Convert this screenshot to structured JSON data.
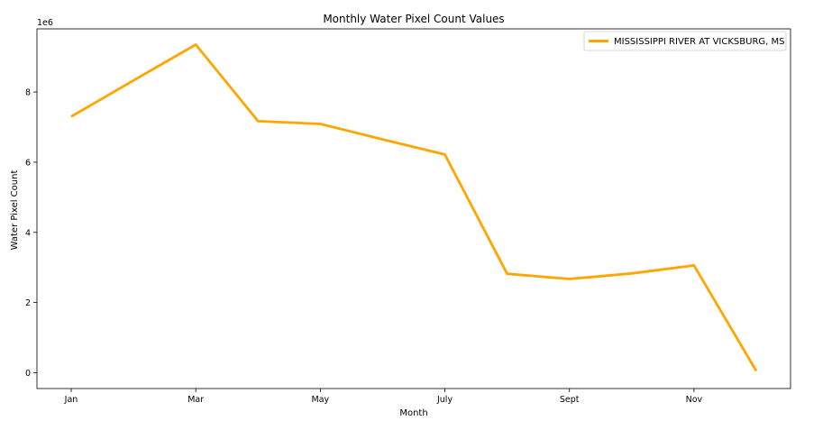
{
  "chart_data": {
    "type": "line",
    "title": "Monthly Water Pixel Count Values",
    "xlabel": "Month",
    "ylabel": "Water Pixel Count",
    "y_scale_label": "1e6",
    "x": [
      1,
      2,
      3,
      4,
      5,
      6,
      7,
      8,
      9,
      10,
      11,
      12
    ],
    "x_ticks": [
      {
        "value": 1,
        "label": "Jan"
      },
      {
        "value": 3,
        "label": "Mar"
      },
      {
        "value": 5,
        "label": "May"
      },
      {
        "value": 7,
        "label": "July"
      },
      {
        "value": 9,
        "label": "Sept"
      },
      {
        "value": 11,
        "label": "Nov"
      }
    ],
    "y_ticks": [
      0,
      2,
      4,
      6,
      8
    ],
    "xlim": [
      0.45,
      12.55
    ],
    "ylim": [
      -0.45,
      9.8
    ],
    "grid": false,
    "legend_position": "top-right",
    "series": [
      {
        "name": "MISSISSIPPI RIVER AT VICKSBURG, MS",
        "color": "#ffa500",
        "values": [
          7.3,
          8.33,
          9.35,
          7.17,
          7.09,
          6.65,
          6.22,
          2.82,
          2.67,
          2.83,
          3.06,
          0.05
        ]
      }
    ]
  }
}
